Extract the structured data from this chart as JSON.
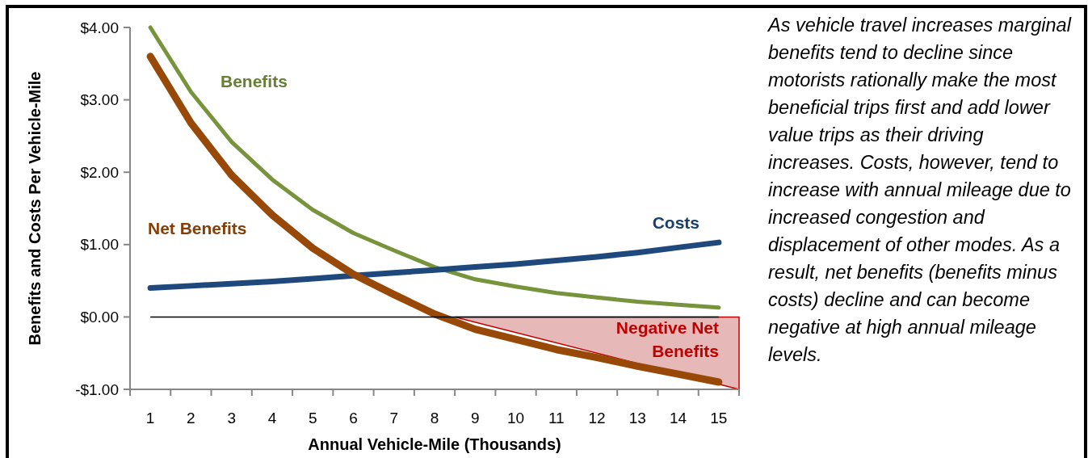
{
  "chart_data": {
    "type": "line",
    "xlabel": "Annual Vehicle-Mile (Thousands)",
    "ylabel": "Benefits and Costs Per Vehicle-Mile",
    "x": [
      1,
      2,
      3,
      4,
      5,
      6,
      7,
      8,
      9,
      10,
      11,
      12,
      13,
      14,
      15
    ],
    "xlim": [
      0.5,
      15.5
    ],
    "xticks": [
      1,
      2,
      3,
      4,
      5,
      6,
      7,
      8,
      9,
      10,
      11,
      12,
      13,
      14,
      15
    ],
    "ylim": [
      -1,
      4
    ],
    "yticks": [
      {
        "value": -1,
        "label": "-$1.00"
      },
      {
        "value": 0,
        "label": "$0.00"
      },
      {
        "value": 1,
        "label": "$1.00"
      },
      {
        "value": 2,
        "label": "$2.00"
      },
      {
        "value": 3,
        "label": "$3.00"
      },
      {
        "value": 4,
        "label": "$4.00"
      }
    ],
    "series": [
      {
        "type": "area",
        "name": "Negative Net Benefits",
        "color": "#c00000",
        "x": [
          8.5,
          15.5
        ],
        "values": [
          0,
          -1
        ]
      },
      {
        "name": "Benefits",
        "color": "#77933c",
        "values": [
          4.0,
          3.11,
          2.42,
          1.9,
          1.48,
          1.16,
          0.92,
          0.69,
          0.52,
          0.42,
          0.33,
          0.27,
          0.21,
          0.17,
          0.13
        ]
      },
      {
        "name": "Costs",
        "color": "#1f497d",
        "values": [
          0.4,
          0.43,
          0.46,
          0.49,
          0.53,
          0.57,
          0.61,
          0.65,
          0.69,
          0.73,
          0.78,
          0.83,
          0.89,
          0.96,
          1.03
        ]
      },
      {
        "name": "Net Benefits",
        "color": "#984807",
        "values": [
          3.6,
          2.68,
          1.96,
          1.41,
          0.95,
          0.59,
          0.31,
          0.04,
          -0.17,
          -0.31,
          -0.45,
          -0.56,
          -0.68,
          -0.79,
          -0.9
        ]
      }
    ],
    "ref_lines": [
      {
        "axis": "y",
        "value": 0,
        "color": "#000000"
      }
    ],
    "grid": false,
    "annotations": [
      "As vehicle travel increases marginal benefits tend to decline since motorists rationally make the most beneficial trips first and add lower value trips as their driving increases. Costs, however, tend to increase with annual mileage due to increased congestion and displacement of other modes. As a result, net benefits (benefits minus costs) decline and can become negative at high annual mileage levels."
    ]
  }
}
